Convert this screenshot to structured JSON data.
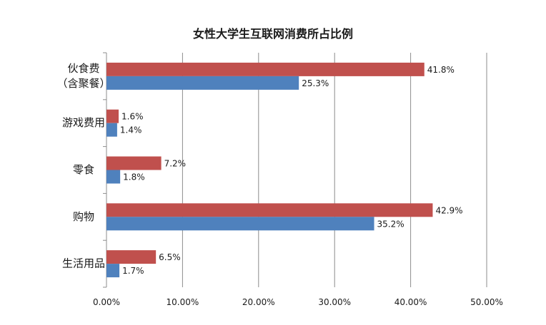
{
  "chart_data": {
    "type": "bar",
    "orientation": "horizontal",
    "title": "女性大学生互联网消费所占比例",
    "categories": [
      "伙食费\n（含聚餐）",
      "游戏费用",
      "零食",
      "购物",
      "生活用品"
    ],
    "series": [
      {
        "values": [
          41.8,
          1.6,
          7.2,
          42.9,
          6.5
        ],
        "labels": [
          "41.8%",
          "1.6%",
          "7.2%",
          "42.9%",
          "6.5%"
        ],
        "color": "#c0504d"
      },
      {
        "values": [
          25.3,
          1.4,
          1.8,
          35.2,
          1.7
        ],
        "labels": [
          "25.3%",
          "1.4%",
          "1.8%",
          "35.2%",
          "1.7%"
        ],
        "color": "#4f81bd"
      }
    ],
    "xlim": [
      0,
      50
    ],
    "x_ticks": [
      "0.00%",
      "10.00%",
      "20.00%",
      "30.00%",
      "40.00%",
      "50.00%"
    ],
    "grid": true,
    "legend": "none"
  }
}
